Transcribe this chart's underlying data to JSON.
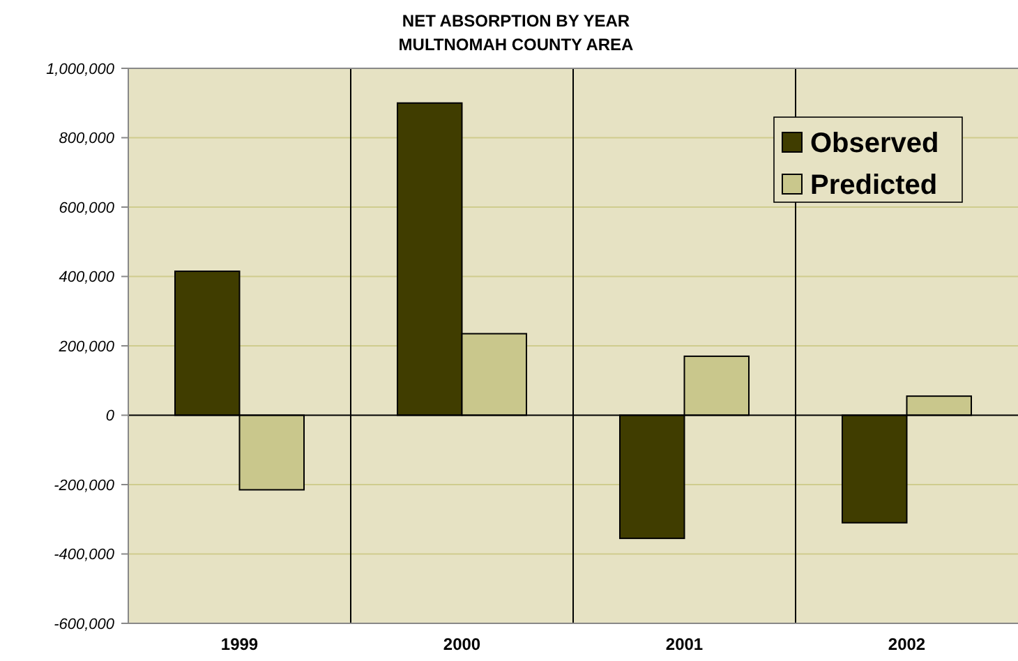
{
  "chart_data": {
    "type": "bar",
    "title": "NET ABSORPTION BY YEAR\nMULTNOMAH COUNTY AREA",
    "categories": [
      "1999",
      "2000",
      "2001",
      "2002"
    ],
    "series": [
      {
        "name": "Observed",
        "color": "#403d00",
        "values": [
          415000,
          900000,
          -355000,
          -310000
        ]
      },
      {
        "name": "Predicted",
        "color": "#c9c78c",
        "values": [
          -215000,
          235000,
          170000,
          55000
        ]
      }
    ],
    "ylim": [
      -600000,
      1000000
    ],
    "yticks": [
      {
        "value": -600000,
        "label": "-600,000"
      },
      {
        "value": -400000,
        "label": "-400,000"
      },
      {
        "value": -200000,
        "label": "-200,000"
      },
      0,
      {
        "value": 200000,
        "label": "200,000"
      },
      {
        "value": 400000,
        "label": "400,000"
      },
      {
        "value": 600000,
        "label": "600,000"
      },
      {
        "value": 800000,
        "label": "800,000"
      },
      {
        "value": 1000000,
        "label": "1,000,000"
      }
    ],
    "grid": true,
    "legend": "top right"
  }
}
